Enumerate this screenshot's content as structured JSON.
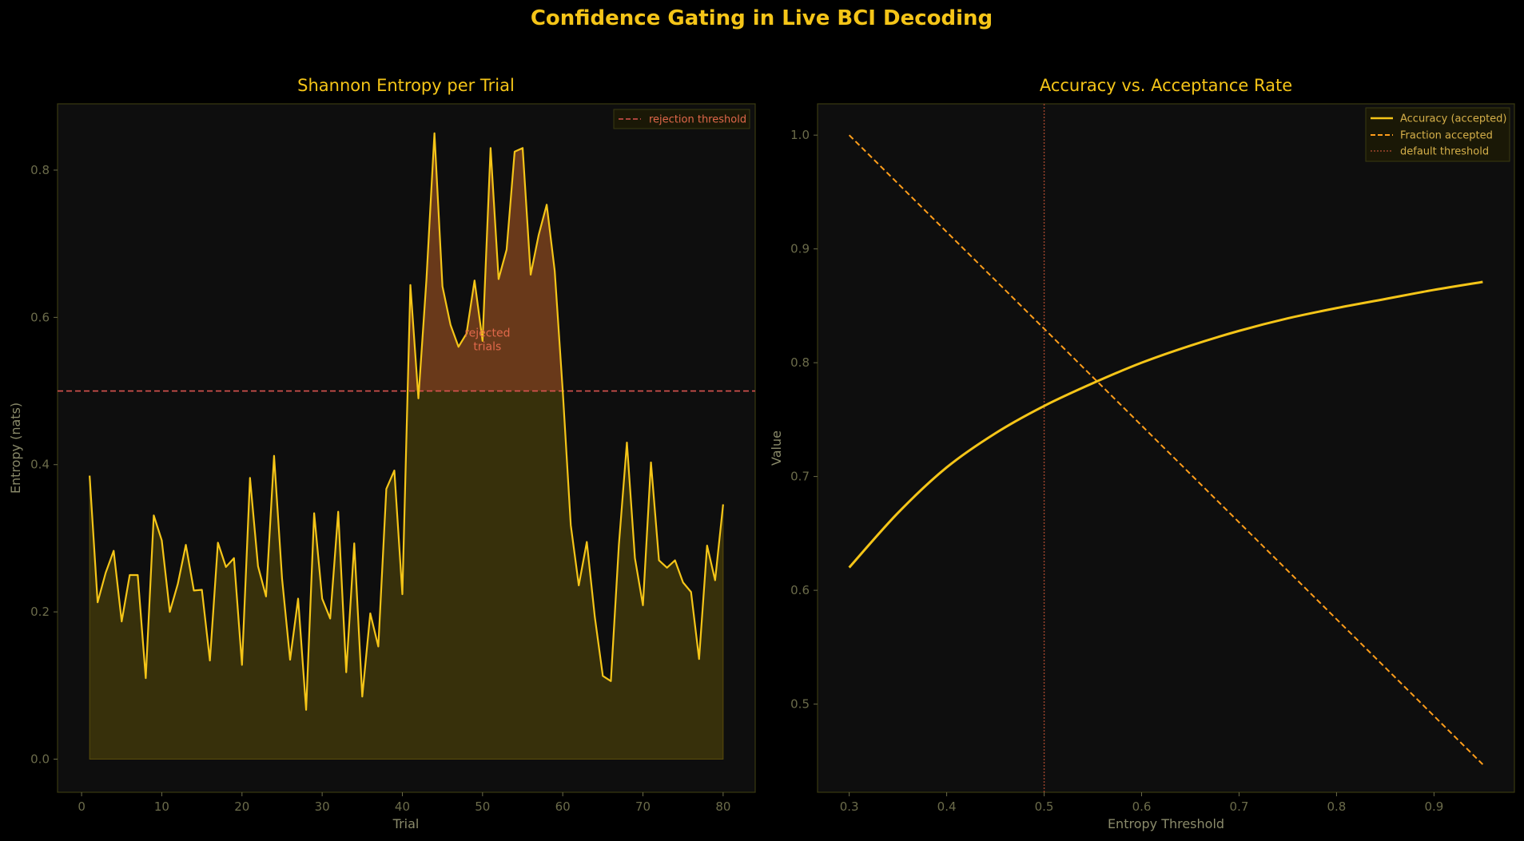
{
  "figure": {
    "title": "Confidence Gating in Live BCI Decoding",
    "background": "#000000",
    "panel_background": "#0e0e0e",
    "title_color": "#f5c518",
    "axis_color": "#8a8a6a",
    "spine_color": "#3a3a10"
  },
  "chart_data": [
    {
      "type": "line",
      "title": "Shannon Entropy per Trial",
      "xlabel": "Trial",
      "ylabel": "Entropy (nats)",
      "xlim": [
        -3,
        84
      ],
      "ylim": [
        -0.045,
        0.89
      ],
      "xticks": [
        0,
        10,
        20,
        30,
        40,
        50,
        60,
        70,
        80
      ],
      "yticks": [
        0.0,
        0.2,
        0.4,
        0.6,
        0.8
      ],
      "ytick_labels": [
        "0.0",
        "0.2",
        "0.4",
        "0.6",
        "0.8"
      ],
      "grid": false,
      "legend_position": "top-right",
      "series": [
        {
          "color": "#f5c518",
          "fill": "#5a4d0a",
          "x": [
            1,
            2,
            3,
            4,
            5,
            6,
            7,
            8,
            9,
            10,
            11,
            12,
            13,
            14,
            15,
            16,
            17,
            18,
            19,
            20,
            21,
            22,
            23,
            24,
            25,
            26,
            27,
            28,
            29,
            30,
            31,
            32,
            33,
            34,
            35,
            36,
            37,
            38,
            39,
            40,
            41,
            42,
            43,
            44,
            45,
            46,
            47,
            48,
            49,
            50,
            51,
            52,
            53,
            54,
            55,
            56,
            57,
            58,
            59,
            60,
            61,
            62,
            63,
            64,
            65,
            66,
            67,
            68,
            69,
            70,
            71,
            72,
            73,
            74,
            75,
            76,
            77,
            78,
            79,
            80
          ],
          "values": [
            0.385,
            0.213,
            0.253,
            0.283,
            0.187,
            0.25,
            0.25,
            0.11,
            0.331,
            0.297,
            0.2,
            0.238,
            0.291,
            0.229,
            0.23,
            0.134,
            0.294,
            0.261,
            0.273,
            0.128,
            0.382,
            0.262,
            0.221,
            0.412,
            0.245,
            0.135,
            0.218,
            0.067,
            0.334,
            0.218,
            0.191,
            0.336,
            0.118,
            0.293,
            0.085,
            0.198,
            0.153,
            0.367,
            0.392,
            0.224,
            0.644,
            0.49,
            0.651,
            0.85,
            0.642,
            0.59,
            0.56,
            0.578,
            0.65,
            0.568,
            0.83,
            0.652,
            0.692,
            0.825,
            0.83,
            0.658,
            0.712,
            0.753,
            0.663,
            0.5,
            0.318,
            0.236,
            0.295,
            0.193,
            0.113,
            0.106,
            0.291,
            0.43,
            0.273,
            0.209,
            0.403,
            0.27,
            0.26,
            0.27,
            0.24,
            0.227,
            0.136,
            0.29,
            0.243,
            0.346
          ]
        }
      ],
      "threshold": {
        "value": 0.5,
        "color": "#d9534f",
        "label": "rejection threshold"
      },
      "rejected_fill": "#6b3a1b",
      "annotation": {
        "text_line1": "rejected",
        "text_line2": "trials",
        "x": 50.6,
        "y": 0.565,
        "color": "#e0684a"
      }
    },
    {
      "type": "line",
      "title": "Accuracy vs. Acceptance Rate",
      "xlabel": "Entropy Threshold",
      "ylabel": "Value",
      "xlim": [
        0.2675,
        0.9825
      ],
      "ylim": [
        0.4225,
        1.0275
      ],
      "xticks": [
        0.3,
        0.4,
        0.5,
        0.6,
        0.7,
        0.8,
        0.9
      ],
      "xtick_labels": [
        "0.3",
        "0.4",
        "0.5",
        "0.6",
        "0.7",
        "0.8",
        "0.9"
      ],
      "yticks": [
        0.5,
        0.6,
        0.7,
        0.8,
        0.9,
        1.0
      ],
      "ytick_labels": [
        "0.5",
        "0.6",
        "0.7",
        "0.8",
        "0.9",
        "1.0"
      ],
      "grid": false,
      "legend_position": "top-right",
      "series": [
        {
          "name": "Accuracy (accepted)",
          "color": "#f5c518",
          "style": "solid",
          "x": [
            0.3,
            0.35,
            0.4,
            0.45,
            0.5,
            0.55,
            0.6,
            0.65,
            0.7,
            0.75,
            0.8,
            0.85,
            0.9,
            0.95
          ],
          "values": [
            0.62,
            0.668,
            0.708,
            0.738,
            0.762,
            0.782,
            0.8,
            0.815,
            0.828,
            0.839,
            0.848,
            0.856,
            0.864,
            0.871
          ]
        },
        {
          "name": "Fraction accepted",
          "color": "#ff9e1b",
          "style": "dashed",
          "x": [
            0.3,
            0.95
          ],
          "values": [
            1.0,
            0.447
          ]
        }
      ],
      "vline": {
        "value": 0.5,
        "color": "#a0442c",
        "label": "default threshold"
      }
    }
  ]
}
